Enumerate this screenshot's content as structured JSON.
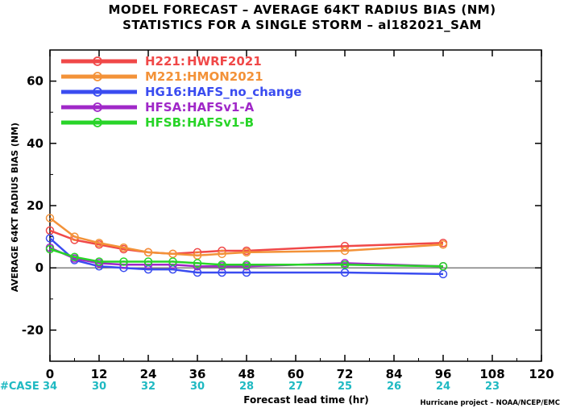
{
  "chart_data": {
    "type": "line",
    "title": "MODEL FORECAST – AVERAGE 64KT RADIUS BIAS (NM)",
    "subtitle": "STATISTICS FOR A SINGLE STORM – al182021_SAM",
    "ylabel": "AVERAGE 64KT RADIUS BIAS (NM)",
    "xlabel": "Forecast lead time (hr)",
    "xlim": [
      0,
      120
    ],
    "ylim": [
      -30,
      70
    ],
    "x_ticks": [
      0,
      12,
      24,
      36,
      48,
      60,
      72,
      84,
      96,
      108,
      120
    ],
    "y_ticks": [
      -20,
      0,
      20,
      40,
      60
    ],
    "reference_line": 0,
    "case_label": "#CASE",
    "case_counts": [
      {
        "x": 0,
        "label": "34"
      },
      {
        "x": 12,
        "label": "30"
      },
      {
        "x": 24,
        "label": "32"
      },
      {
        "x": 36,
        "label": "30"
      },
      {
        "x": 48,
        "label": "28"
      },
      {
        "x": 60,
        "label": "27"
      },
      {
        "x": 72,
        "label": "25"
      },
      {
        "x": 84,
        "label": "26"
      },
      {
        "x": 96,
        "label": "24"
      },
      {
        "x": 108,
        "label": "23"
      }
    ],
    "legend_position": "top-left",
    "series": [
      {
        "code": "H221:",
        "name": "HWRF2021",
        "color": "#f04848",
        "x": [
          0,
          6,
          12,
          18,
          24,
          30,
          36,
          42,
          48,
          72,
          96
        ],
        "y": [
          12,
          9,
          7.5,
          6,
          5,
          4.5,
          5,
          5.5,
          5.5,
          7,
          8
        ]
      },
      {
        "code": "M221:",
        "name": "HMON2021",
        "color": "#f39238",
        "x": [
          0,
          6,
          12,
          18,
          24,
          30,
          36,
          42,
          48,
          72,
          96
        ],
        "y": [
          16,
          10,
          8,
          6.5,
          5,
          4.5,
          4,
          4.5,
          5,
          5.5,
          7.5
        ]
      },
      {
        "code": "HG16:",
        "name": "HAFS_no_change",
        "color": "#3a4cf0",
        "x": [
          0,
          6,
          12,
          18,
          24,
          30,
          36,
          42,
          48,
          72,
          96
        ],
        "y": [
          9.5,
          2.5,
          0.5,
          0,
          -0.5,
          -0.5,
          -1.5,
          -1.5,
          -1.5,
          -1.5,
          -2
        ]
      },
      {
        "code": "HFSA:",
        "name": "HAFSv1-A",
        "color": "#a028c8",
        "x": [
          0,
          6,
          12,
          18,
          24,
          30,
          36,
          42,
          48,
          72,
          96
        ],
        "y": [
          6.5,
          3,
          1.5,
          1,
          1,
          1,
          0.5,
          0.5,
          0.5,
          1.5,
          0.5
        ]
      },
      {
        "code": "HFSB:",
        "name": "HAFSv1-B",
        "color": "#28d428",
        "x": [
          0,
          6,
          12,
          18,
          24,
          30,
          36,
          42,
          48,
          72,
          96
        ],
        "y": [
          6,
          3.5,
          2,
          2,
          2,
          2,
          1.5,
          1,
          1,
          1,
          0.5
        ]
      }
    ],
    "credit": "Hurricane project – NOAA/NCEP/EMC"
  },
  "colors": {
    "axis": "#000000",
    "case_text": "#1fb9c2",
    "zero_line": "#555555"
  }
}
